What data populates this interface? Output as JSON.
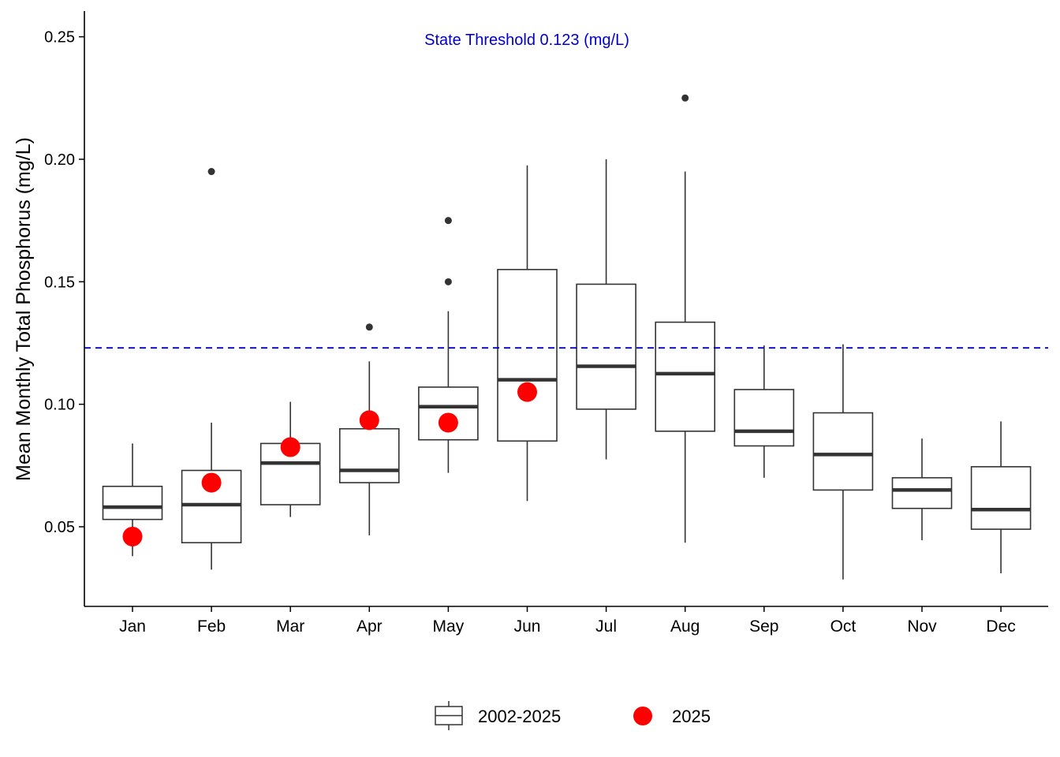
{
  "chart_data": {
    "type": "box",
    "ylabel": "Mean Monthly Total Phosphorus (mg/L)",
    "xlabel": "",
    "ylim": [
      0.0175,
      0.2605
    ],
    "yticks": [
      0.05,
      0.1,
      0.15,
      0.2,
      0.25
    ],
    "ytick_labels": [
      "0.05",
      "0.10",
      "0.15",
      "0.20",
      "0.25"
    ],
    "grid": false,
    "categories": [
      "Jan",
      "Feb",
      "Mar",
      "Apr",
      "May",
      "Jun",
      "Jul",
      "Aug",
      "Sep",
      "Oct",
      "Nov",
      "Dec"
    ],
    "boxes": [
      {
        "low": 0.038,
        "q1": 0.053,
        "median": 0.058,
        "q3": 0.0665,
        "high": 0.084,
        "outliers": []
      },
      {
        "low": 0.0325,
        "q1": 0.0435,
        "median": 0.059,
        "q3": 0.073,
        "high": 0.0925,
        "outliers": [
          0.195
        ]
      },
      {
        "low": 0.054,
        "q1": 0.059,
        "median": 0.076,
        "q3": 0.084,
        "high": 0.101,
        "outliers": []
      },
      {
        "low": 0.0465,
        "q1": 0.068,
        "median": 0.073,
        "q3": 0.09,
        "high": 0.1175,
        "outliers": [
          0.1315
        ]
      },
      {
        "low": 0.072,
        "q1": 0.0855,
        "median": 0.099,
        "q3": 0.107,
        "high": 0.138,
        "outliers": [
          0.175,
          0.15
        ]
      },
      {
        "low": 0.0605,
        "q1": 0.085,
        "median": 0.11,
        "q3": 0.155,
        "high": 0.1975,
        "outliers": []
      },
      {
        "low": 0.0775,
        "q1": 0.098,
        "median": 0.1155,
        "q3": 0.149,
        "high": 0.2,
        "outliers": []
      },
      {
        "low": 0.0435,
        "q1": 0.089,
        "median": 0.1125,
        "q3": 0.1335,
        "high": 0.195,
        "outliers": [
          0.225
        ]
      },
      {
        "low": 0.07,
        "q1": 0.083,
        "median": 0.089,
        "q3": 0.106,
        "high": 0.124,
        "outliers": []
      },
      {
        "low": 0.0285,
        "q1": 0.065,
        "median": 0.0795,
        "q3": 0.0965,
        "high": 0.1245,
        "outliers": []
      },
      {
        "low": 0.0445,
        "q1": 0.0575,
        "median": 0.065,
        "q3": 0.07,
        "high": 0.086,
        "outliers": []
      },
      {
        "low": 0.031,
        "q1": 0.049,
        "median": 0.057,
        "q3": 0.0745,
        "high": 0.093,
        "outliers": []
      }
    ],
    "points_2025": [
      0.046,
      0.068,
      0.0825,
      0.0935,
      0.0925,
      0.105,
      null,
      null,
      null,
      null,
      null,
      null
    ],
    "threshold": {
      "value": 0.123,
      "label": "State Threshold 0.123 (mg/L)",
      "color": "#0000cc"
    },
    "legend": {
      "placement": "bottom",
      "items": [
        {
          "name": "2002-2025",
          "kind": "box"
        },
        {
          "name": "2025",
          "kind": "point",
          "color": "#ff0000"
        }
      ]
    },
    "colors": {
      "box": "#333333",
      "point": "#ff0000",
      "threshold": "#0000cc"
    }
  }
}
